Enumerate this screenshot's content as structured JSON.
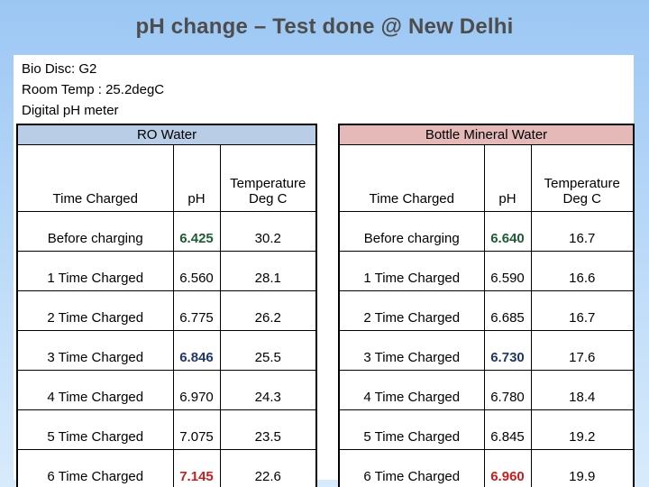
{
  "title": "pH change – Test done @ New Delhi",
  "meta": [
    "Bio Disc: G2",
    "Room Temp : 25.2degC",
    "Digital pH meter"
  ],
  "colors": {
    "background_top": "#9cc7f4",
    "background_bottom": "#d8ebfc",
    "title_color": "#4d4d4d",
    "ro_header_bg": "#b9cde7",
    "bottle_header_bg": "#e4b9b8",
    "ph_green": "#1d5c35",
    "ph_navy": "#1f3864",
    "ph_red": "#c32020"
  },
  "tables": [
    {
      "name": "RO Water",
      "columns": [
        "Time Charged",
        "pH",
        "Temperature Deg C"
      ],
      "rows": [
        {
          "time": "Before charging",
          "ph": "6.425",
          "temp": "30.2",
          "ph_style": "green"
        },
        {
          "time": "1 Time Charged",
          "ph": "6.560",
          "temp": "28.1",
          "ph_style": "normal"
        },
        {
          "time": "2 Time Charged",
          "ph": "6.775",
          "temp": "26.2",
          "ph_style": "normal"
        },
        {
          "time": "3 Time Charged",
          "ph": "6.846",
          "temp": "25.5",
          "ph_style": "navy"
        },
        {
          "time": "4 Time Charged",
          "ph": "6.970",
          "temp": "24.3",
          "ph_style": "normal"
        },
        {
          "time": "5 Time Charged",
          "ph": "7.075",
          "temp": "23.5",
          "ph_style": "normal"
        },
        {
          "time": "6 Time Charged",
          "ph": "7.145",
          "temp": "22.6",
          "ph_style": "red"
        }
      ]
    },
    {
      "name": "Bottle Mineral Water",
      "columns": [
        "Time Charged",
        "pH",
        "Temperature Deg C"
      ],
      "rows": [
        {
          "time": "Before charging",
          "ph": "6.640",
          "temp": "16.7",
          "ph_style": "green"
        },
        {
          "time": "1 Time Charged",
          "ph": "6.590",
          "temp": "16.6",
          "ph_style": "normal"
        },
        {
          "time": "2 Time Charged",
          "ph": "6.685",
          "temp": "16.7",
          "ph_style": "normal"
        },
        {
          "time": "3 Time Charged",
          "ph": "6.730",
          "temp": "17.6",
          "ph_style": "navy"
        },
        {
          "time": "4 Time Charged",
          "ph": "6.780",
          "temp": "18.4",
          "ph_style": "normal"
        },
        {
          "time": "5 Time Charged",
          "ph": "6.845",
          "temp": "19.2",
          "ph_style": "normal"
        },
        {
          "time": "6 Time Charged",
          "ph": "6.960",
          "temp": "19.9",
          "ph_style": "red"
        }
      ]
    }
  ]
}
